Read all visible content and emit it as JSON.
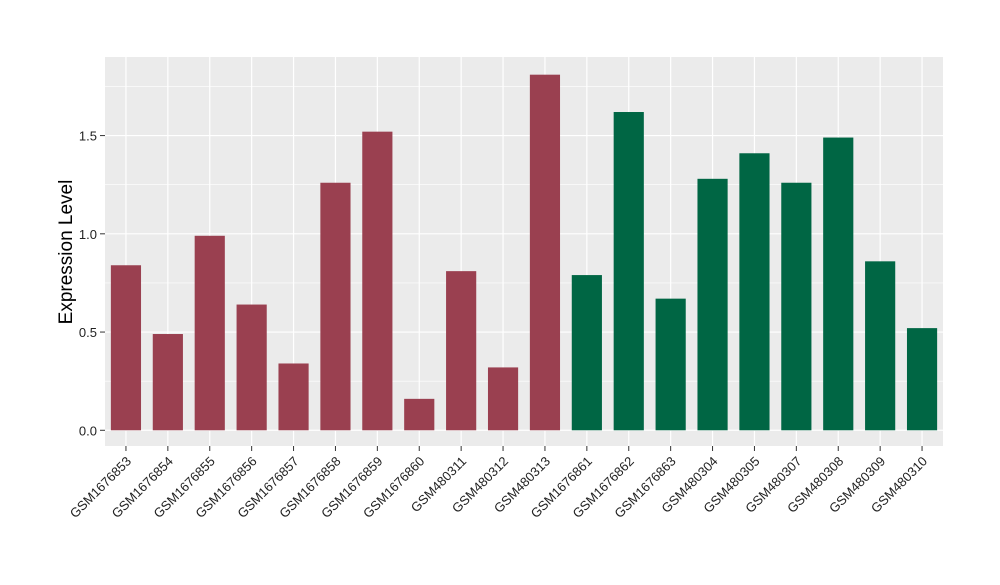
{
  "chart_data": {
    "type": "bar",
    "title": "",
    "xlabel": "",
    "ylabel": "Expression Level",
    "ylim": [
      -0.08,
      1.9
    ],
    "yticks": [
      0.0,
      0.5,
      1.0,
      1.5
    ],
    "ytick_labels": [
      "0.0",
      "0.5",
      "1.0",
      "1.5"
    ],
    "grid": true,
    "legend": "none",
    "panel_background": "#ebebeb",
    "grid_color": "#ffffff",
    "categories": [
      "GSM1676853",
      "GSM1676854",
      "GSM1676855",
      "GSM1676856",
      "GSM1676857",
      "GSM1676858",
      "GSM1676859",
      "GSM1676860",
      "GSM480311",
      "GSM480312",
      "GSM480313",
      "GSM1676861",
      "GSM1676862",
      "GSM1676863",
      "GSM480304",
      "GSM480305",
      "GSM480307",
      "GSM480308",
      "GSM480309",
      "GSM480310"
    ],
    "values": [
      0.84,
      0.49,
      0.99,
      0.64,
      0.34,
      1.26,
      1.52,
      0.16,
      0.81,
      0.32,
      1.81,
      0.79,
      1.62,
      0.67,
      1.28,
      1.41,
      1.26,
      1.49,
      0.86,
      0.52
    ],
    "group_colors": [
      "#9a4050",
      "#9a4050",
      "#9a4050",
      "#9a4050",
      "#9a4050",
      "#9a4050",
      "#9a4050",
      "#9a4050",
      "#9a4050",
      "#9a4050",
      "#9a4050",
      "#006644",
      "#006644",
      "#006644",
      "#006644",
      "#006644",
      "#006644",
      "#006644",
      "#006644",
      "#006644"
    ]
  }
}
